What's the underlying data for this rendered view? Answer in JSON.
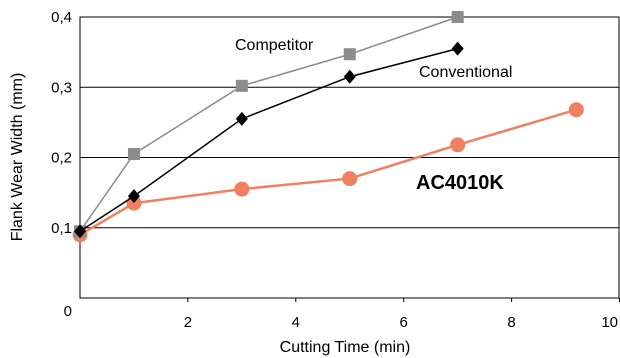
{
  "chart_data": {
    "type": "line",
    "xlabel": "Cutting Time (min)",
    "ylabel": "Flank Wear Width (mm)",
    "xlim": [
      0,
      10
    ],
    "ylim": [
      0,
      0.4
    ],
    "xticks": [
      2,
      4,
      6,
      8,
      10
    ],
    "xtick_labels": [
      "2",
      "4",
      "6",
      "8",
      "10"
    ],
    "yticks": [
      0.1,
      0.2,
      0.3,
      0.4
    ],
    "ytick_labels": [
      "0,1",
      "0,2",
      "0,3",
      "0,4"
    ],
    "origin_label": "0",
    "grid": "horizontal",
    "series": [
      {
        "name": "Competitor",
        "color": "#8c8c8c",
        "marker": "square",
        "x": [
          0,
          1,
          3,
          5,
          7
        ],
        "y": [
          0.095,
          0.205,
          0.302,
          0.347,
          0.4
        ]
      },
      {
        "name": "Conventional",
        "color": "#000000",
        "marker": "diamond",
        "x": [
          0,
          1,
          3,
          5,
          7
        ],
        "y": [
          0.095,
          0.145,
          0.255,
          0.315,
          0.355
        ]
      },
      {
        "name": "AC4010K",
        "color": "#f08060",
        "marker": "circle",
        "x": [
          0,
          1,
          3,
          5,
          7,
          9.2
        ],
        "y": [
          0.09,
          0.135,
          0.155,
          0.17,
          0.218,
          0.268
        ]
      }
    ]
  }
}
